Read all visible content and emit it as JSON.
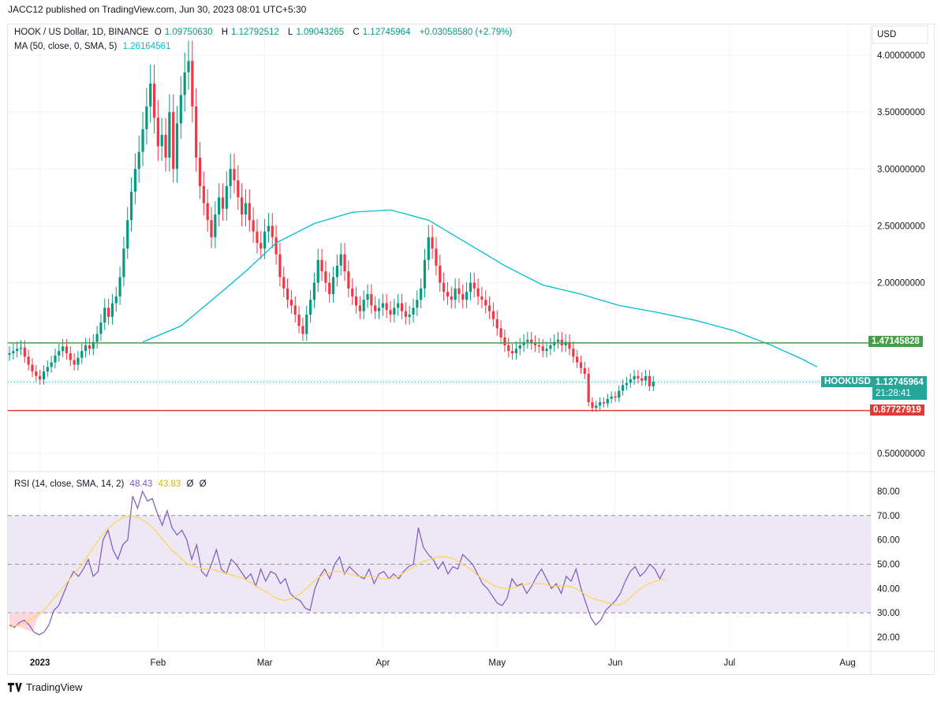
{
  "header": {
    "published": "JACC12 published on TradingView.com, Jun 30, 2023 08:01 UTC+5:30"
  },
  "legend": {
    "symbol": "HOOK / US Dollar, 1D, BINANCE",
    "o_label": "O",
    "o": "1.09750630",
    "h_label": "H",
    "h": "1.12792512",
    "l_label": "L",
    "l": "1.09043265",
    "c_label": "C",
    "c": "1.12745964",
    "change": "+0.03058580 (+2.79%)",
    "ma_label": "MA (50, close, 0, SMA, 5)",
    "ma_value": "1.26164561",
    "rsi_label": "RSI (14, close, SMA, 14, 2)",
    "rsi_value": "48.43",
    "rsi_ma_value": "43.83",
    "rsi_extra1": "Ø",
    "rsi_extra2": "Ø"
  },
  "axis": {
    "currency": "USD",
    "price_ticks": [
      "4.00000000",
      "3.50000000",
      "3.00000000",
      "2.50000000",
      "2.00000000",
      "0.50000000"
    ],
    "rsi_ticks": [
      "80.00",
      "70.00",
      "60.00",
      "50.00",
      "40.00",
      "30.00",
      "20.00"
    ],
    "x_ticks": [
      "2023",
      "Feb",
      "Mar",
      "Apr",
      "May",
      "Jun",
      "Jul",
      "Aug"
    ]
  },
  "tags": {
    "green_level": "1.47145828",
    "symbol_tag": "HOOKUSD",
    "last_price": "1.12745964",
    "countdown": "21:28:41",
    "red_level": "0.87727919"
  },
  "colors": {
    "up": "#089981",
    "down": "#f23645",
    "ma": "#00bcd4",
    "green_line": "#43a047",
    "red_line": "#e53935",
    "rsi": "#7e57c2",
    "rsi_ma": "#ffd54f",
    "rsi_band": "#ede7f6"
  },
  "brand": {
    "name": "TradingView"
  },
  "chart_data": {
    "type": "candlestick",
    "timeframe": "1D",
    "start_date": "2022-12-24",
    "y_range": [
      0.3,
      4.2
    ],
    "horizontal_lines": [
      {
        "value": 1.47145828,
        "color": "green"
      },
      {
        "value": 0.87727919,
        "color": "red"
      }
    ],
    "closes": [
      1.38,
      1.4,
      1.42,
      1.43,
      1.35,
      1.28,
      1.22,
      1.18,
      1.15,
      1.22,
      1.26,
      1.3,
      1.36,
      1.4,
      1.44,
      1.38,
      1.32,
      1.28,
      1.34,
      1.4,
      1.45,
      1.42,
      1.48,
      1.55,
      1.65,
      1.78,
      1.7,
      1.82,
      1.88,
      2.05,
      2.3,
      2.55,
      2.8,
      3.0,
      3.15,
      3.35,
      3.55,
      3.75,
      3.45,
      3.2,
      3.3,
      3.1,
      3.5,
      3.0,
      3.4,
      3.65,
      3.85,
      3.95,
      3.55,
      3.1,
      2.85,
      2.7,
      2.55,
      2.4,
      2.6,
      2.75,
      2.65,
      2.85,
      3.0,
      2.9,
      2.75,
      2.6,
      2.7,
      2.55,
      2.45,
      2.35,
      2.3,
      2.45,
      2.5,
      2.4,
      2.25,
      2.05,
      1.95,
      1.85,
      1.8,
      1.72,
      1.62,
      1.55,
      1.72,
      1.85,
      2.0,
      2.2,
      2.1,
      2.0,
      1.9,
      2.05,
      2.15,
      2.25,
      2.1,
      1.95,
      1.88,
      1.8,
      1.75,
      1.85,
      1.9,
      1.8,
      1.75,
      1.78,
      1.82,
      1.76,
      1.72,
      1.78,
      1.82,
      1.75,
      1.7,
      1.72,
      1.78,
      1.85,
      1.95,
      2.2,
      2.4,
      2.3,
      2.15,
      2.0,
      1.92,
      1.88,
      1.85,
      1.95,
      1.9,
      1.85,
      1.92,
      2.0,
      1.95,
      1.88,
      1.85,
      1.8,
      1.75,
      1.68,
      1.6,
      1.52,
      1.45,
      1.4,
      1.38,
      1.42,
      1.45,
      1.48,
      1.5,
      1.47,
      1.45,
      1.44,
      1.4,
      1.42,
      1.45,
      1.48,
      1.5,
      1.45,
      1.48,
      1.42,
      1.35,
      1.3,
      1.25,
      1.2,
      0.95,
      0.9,
      0.92,
      0.95,
      0.94,
      0.98,
      1.0,
      0.99,
      1.05,
      1.1,
      1.12,
      1.15,
      1.18,
      1.16,
      1.14,
      1.18,
      1.09,
      1.13
    ],
    "ma50": [
      [
        35,
        1.48
      ],
      [
        45,
        1.62
      ],
      [
        55,
        1.9
      ],
      [
        62,
        2.1
      ],
      [
        70,
        2.35
      ],
      [
        80,
        2.52
      ],
      [
        90,
        2.62
      ],
      [
        100,
        2.64
      ],
      [
        110,
        2.55
      ],
      [
        120,
        2.35
      ],
      [
        130,
        2.15
      ],
      [
        140,
        1.98
      ],
      [
        150,
        1.9
      ],
      [
        160,
        1.8
      ],
      [
        170,
        1.74
      ],
      [
        180,
        1.67
      ],
      [
        190,
        1.58
      ],
      [
        200,
        1.45
      ],
      [
        208,
        1.33
      ],
      [
        212,
        1.26
      ]
    ],
    "rsi": [
      25,
      24,
      26,
      27,
      25,
      22,
      21,
      22,
      25,
      31,
      33,
      38,
      43,
      47,
      45,
      48,
      52,
      45,
      47,
      60,
      64,
      56,
      52,
      58,
      60,
      78,
      73,
      80,
      76,
      77,
      71,
      66,
      72,
      65,
      62,
      64,
      60,
      52,
      58,
      47,
      45,
      50,
      56,
      48,
      46,
      52,
      50,
      47,
      44,
      46,
      41,
      48,
      43,
      47,
      46,
      42,
      44,
      38,
      36,
      35,
      32,
      31,
      40,
      45,
      48,
      44,
      50,
      53,
      46,
      49,
      47,
      45,
      44,
      48,
      42,
      46,
      47,
      44,
      46,
      44,
      47,
      49,
      50,
      65,
      57,
      54,
      52,
      48,
      51,
      46,
      49,
      48,
      54,
      52,
      50,
      46,
      42,
      40,
      37,
      34,
      33,
      36,
      44,
      41,
      42,
      38,
      41,
      45,
      48,
      44,
      40,
      42,
      38,
      45,
      43,
      48,
      40,
      34,
      28,
      25,
      27,
      31,
      33,
      35,
      38,
      43,
      47,
      49,
      45,
      47,
      50,
      48,
      44,
      48
    ],
    "rsi_ma": [
      24,
      25,
      26,
      28,
      30,
      34,
      38,
      42,
      46,
      50,
      55,
      60,
      64,
      67,
      69,
      70,
      69,
      67,
      64,
      60,
      56,
      53,
      50,
      49,
      48,
      48,
      47,
      46,
      45,
      44,
      42,
      40,
      38,
      36,
      35,
      36,
      38,
      41,
      44,
      46,
      47,
      47,
      46,
      45,
      45,
      45,
      44,
      44,
      45,
      47,
      49,
      51,
      52,
      53,
      53,
      52,
      50,
      48,
      45,
      43,
      41,
      40,
      40,
      41,
      42,
      42,
      42,
      41,
      41,
      41,
      40,
      38,
      36,
      35,
      34,
      33,
      34,
      37,
      40,
      42,
      43,
      44
    ],
    "rsi_levels": [
      70,
      50,
      30
    ]
  }
}
